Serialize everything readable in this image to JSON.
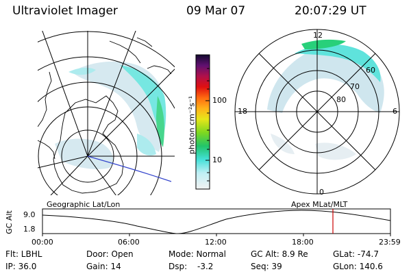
{
  "header": {
    "instrument": "Ultraviolet Imager",
    "date": "09 Mar 07",
    "time": "20:07:29 UT"
  },
  "colorbar": {
    "label": "photon cm⁻²s⁻¹",
    "ticks": [
      "100",
      "10"
    ]
  },
  "right_map": {
    "mlt_labels": [
      "12",
      "18",
      "6",
      "0"
    ],
    "lat_labels": [
      "60",
      "70",
      "80"
    ]
  },
  "timeline": {
    "left_caption": "Geographic Lat/Lon",
    "right_caption": "Apex MLat/MLT",
    "axis_title": "GC Alt",
    "y_ticks": [
      "9.0",
      "1.8"
    ],
    "x_ticks": [
      "00:00",
      "06:00",
      "12:00",
      "18:00",
      "23:59"
    ],
    "marker_color": "#cc0000"
  },
  "info": {
    "row1": [
      "Flt: LBHL",
      "Door: Open",
      "Mode: Normal",
      "GC Alt: 8.9 Re",
      "GLat: -74.7"
    ],
    "row2": [
      "IP: 36.0",
      "Gain: 14",
      "Dsp:",
      "-3.2",
      "Seq: 39",
      "GLon: 140.6"
    ]
  },
  "colors": {
    "aurora_low": "#cfe6ee",
    "aurora_mid": "#5fe3dc",
    "aurora_high": "#28d07a"
  }
}
